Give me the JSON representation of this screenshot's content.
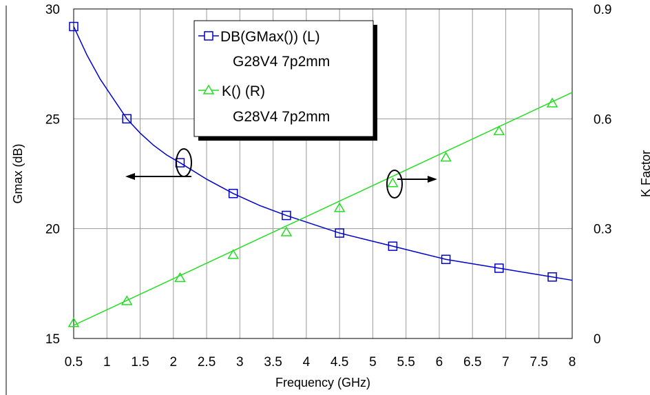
{
  "chart_data": {
    "type": "line",
    "title": "",
    "xlabel": "Frequency (GHz)",
    "ylabel_left": "Gmax (dB)",
    "ylabel_right": "K Factor",
    "xlim": [
      0.5,
      8
    ],
    "ylim_left": [
      15,
      30
    ],
    "ylim_right": [
      0,
      0.9
    ],
    "x_ticks": [
      "0.5",
      "1",
      "1.5",
      "2",
      "2.5",
      "3",
      "3.5",
      "4",
      "4.5",
      "5",
      "5.5",
      "6",
      "6.5",
      "7",
      "7.5",
      "8"
    ],
    "y_left_ticks": [
      "15",
      "20",
      "25",
      "30"
    ],
    "y_right_ticks": [
      "0",
      "0.3",
      "0.6",
      "0.9"
    ],
    "grid": true,
    "legend_position": "top-center",
    "series": [
      {
        "legend_line1": "DB(GMax()) (L)",
        "legend_line2": "G28V4 7p2mm",
        "axis": "left",
        "color": "#0000cc",
        "marker": "square",
        "marker_x": [
          0.5,
          1.3,
          2.1,
          2.9,
          3.7,
          4.5,
          5.3,
          6.1,
          6.9,
          7.7
        ],
        "marker_y": [
          29.2,
          25.0,
          23.0,
          21.6,
          20.6,
          19.8,
          19.2,
          18.6,
          18.2,
          17.8
        ],
        "curve_x": [
          0.5,
          0.7,
          0.9,
          1.1,
          1.3,
          1.5,
          1.7,
          1.9,
          2.1,
          2.5,
          2.9,
          3.3,
          3.7,
          4.1,
          4.5,
          4.9,
          5.3,
          5.7,
          6.1,
          6.5,
          6.9,
          7.3,
          7.7,
          8.0
        ],
        "curve_y": [
          29.2,
          27.9,
          26.8,
          25.9,
          25.0,
          24.35,
          23.8,
          23.35,
          23.0,
          22.25,
          21.6,
          21.05,
          20.6,
          20.2,
          19.8,
          19.5,
          19.2,
          18.9,
          18.6,
          18.4,
          18.2,
          18.0,
          17.8,
          17.65
        ]
      },
      {
        "legend_line1": "K() (R)",
        "legend_line2": "G28V4 7p2mm",
        "axis": "right",
        "color": "#22dd22",
        "marker": "triangle",
        "marker_x": [
          0.5,
          1.3,
          2.1,
          2.9,
          3.7,
          4.5,
          5.3,
          6.1,
          6.9,
          7.7
        ],
        "marker_y": [
          0.042,
          0.102,
          0.165,
          0.228,
          0.29,
          0.356,
          0.424,
          0.494,
          0.566,
          0.642
        ],
        "curve_x": [
          0.5,
          8.0
        ],
        "curve_y": [
          0.036,
          0.672
        ]
      }
    ],
    "annotations": [
      {
        "kind": "arrow",
        "points_to": "left axis",
        "near_x": 2.1,
        "near_y": 23.0
      },
      {
        "kind": "arrow",
        "points_to": "right axis",
        "near_x": 5.3,
        "near_y": 0.424
      }
    ]
  }
}
